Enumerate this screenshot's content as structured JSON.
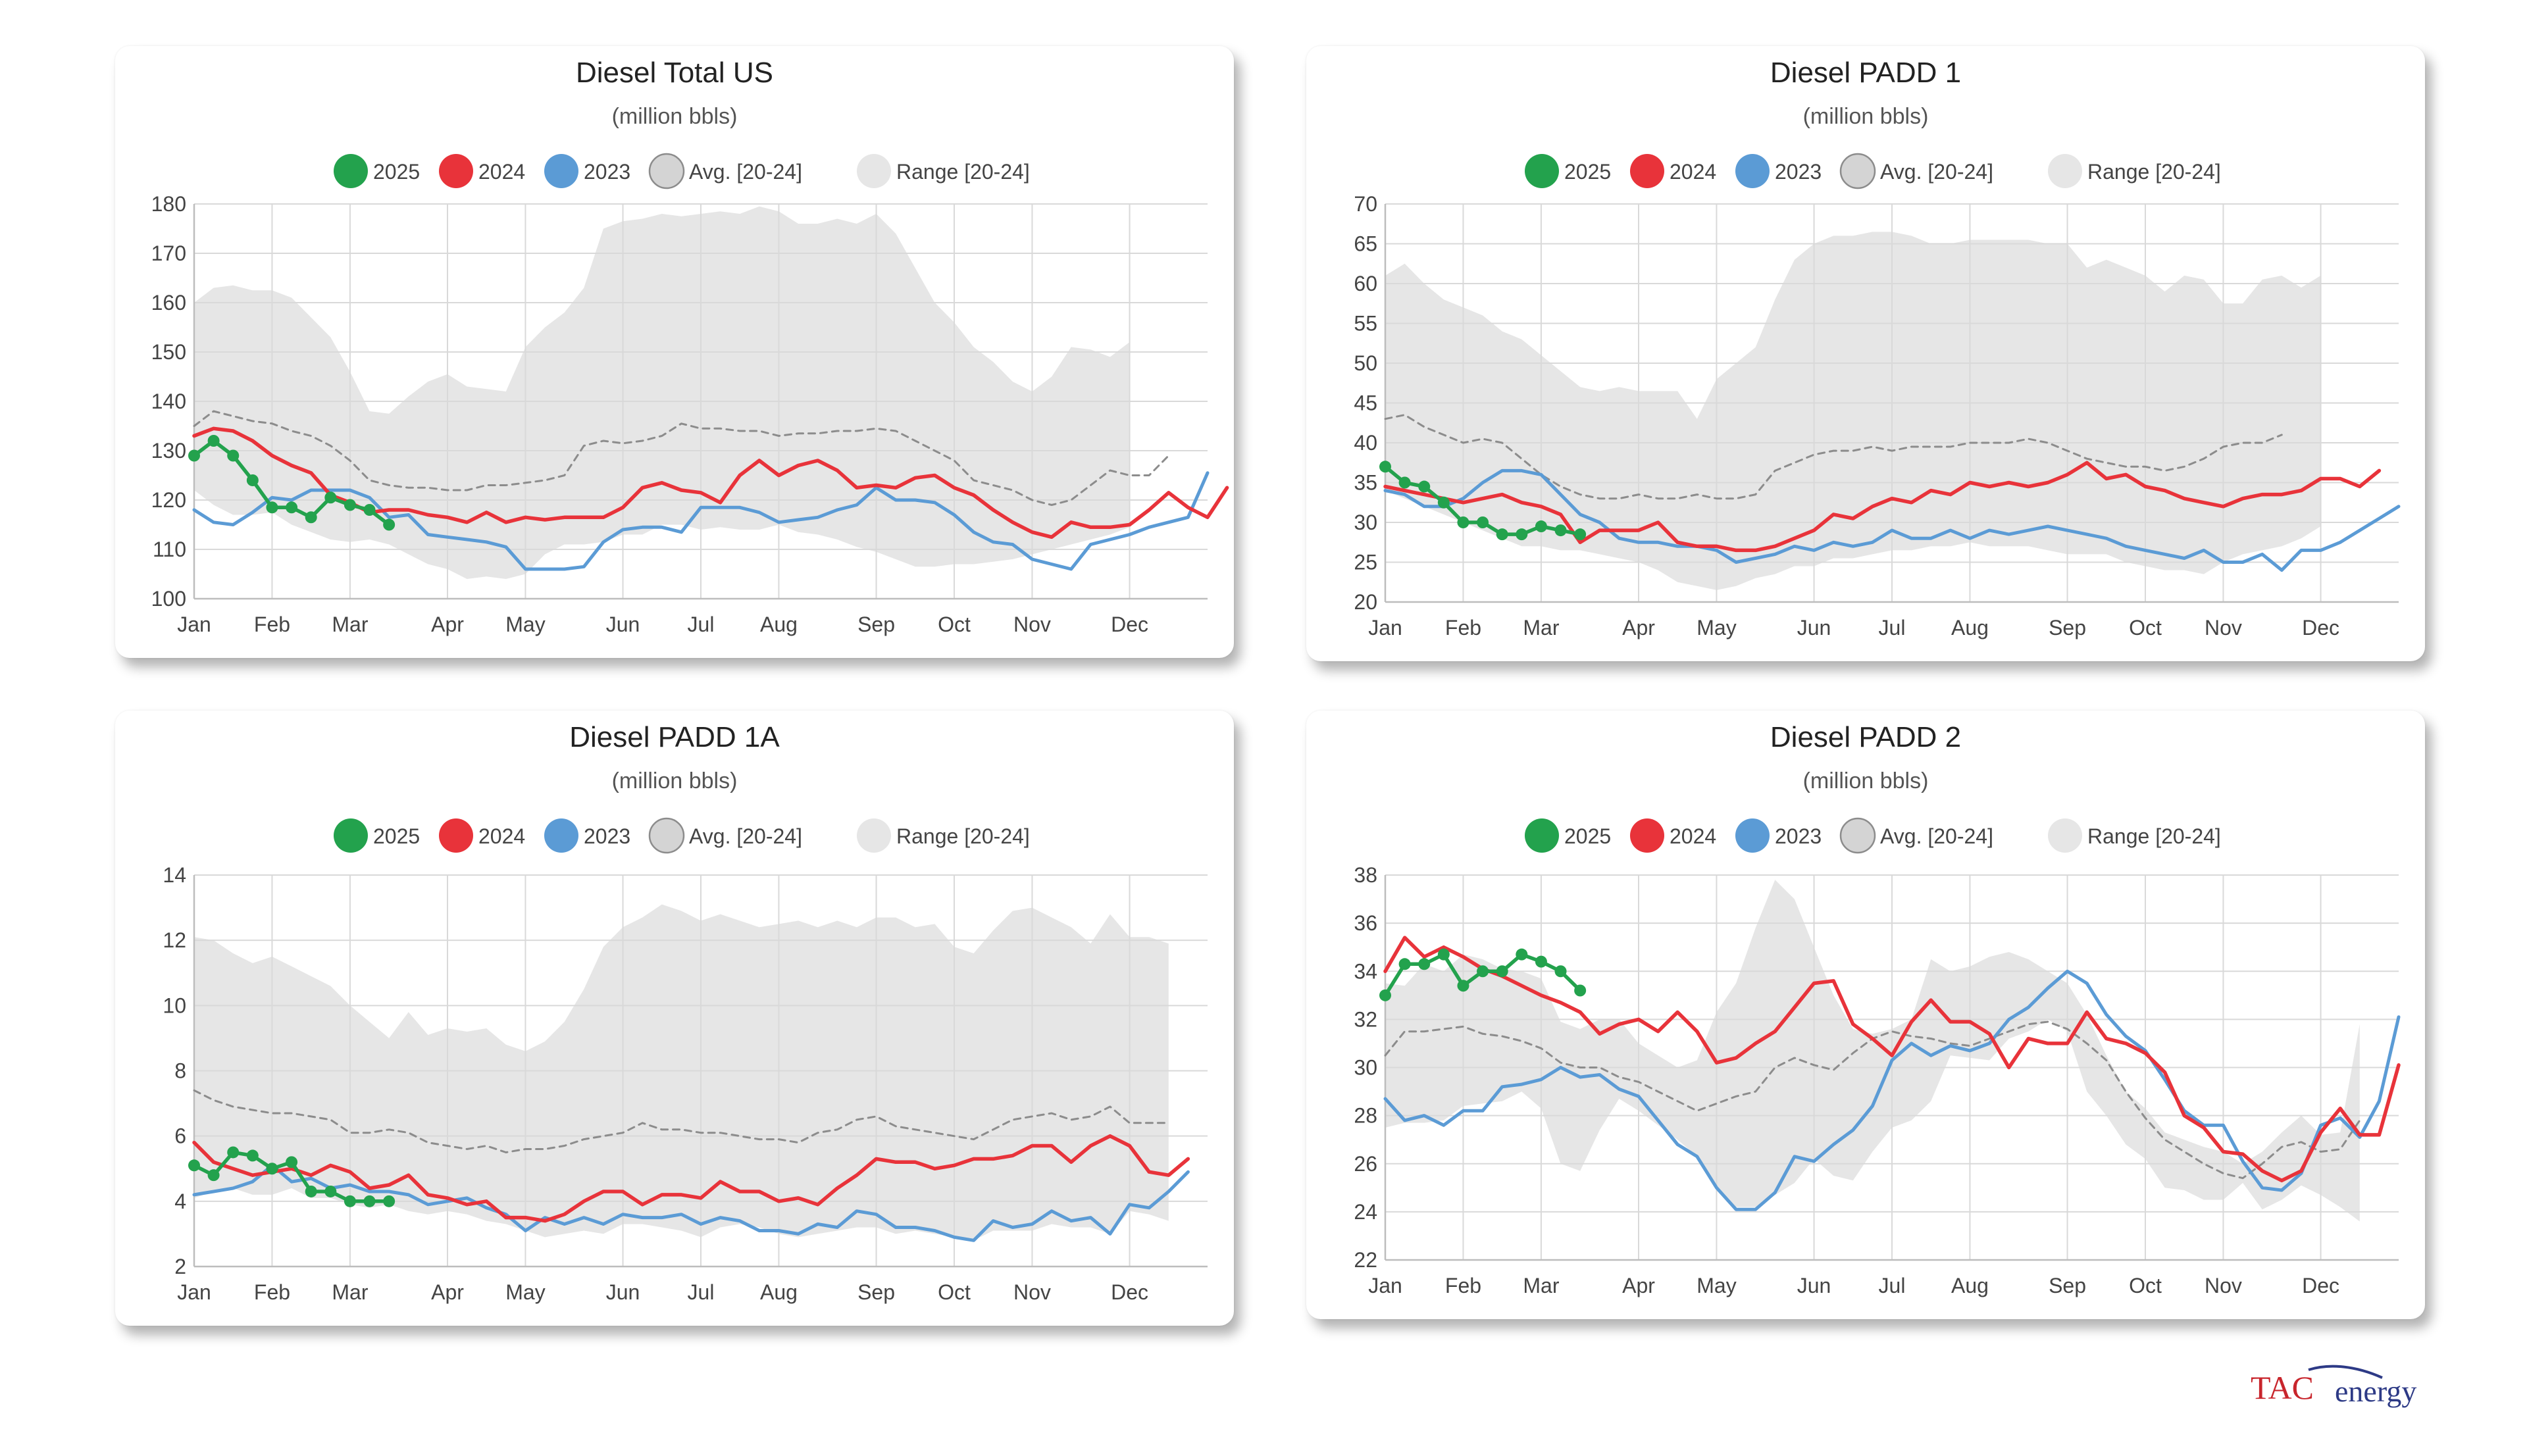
{
  "legend": {
    "s2025": "2025",
    "s2024": "2024",
    "s2023": "2023",
    "avg": "Avg. [20-24]",
    "range": "Range [20-24]"
  },
  "colors": {
    "s2025": "#23a24d",
    "s2024": "#e8333a",
    "s2023": "#5b9bd5",
    "avg": "#8c8c8c",
    "range": "#e6e6e6",
    "grid": "#d9d9d9"
  },
  "x_tick_labels": [
    "Jan",
    "Feb",
    "Mar",
    "Apr",
    "May",
    "Jun",
    "Jul",
    "Aug",
    "Sep",
    "Oct",
    "Nov",
    "Dec"
  ],
  "x_tick_weeks": [
    0,
    4,
    8,
    13,
    17,
    22,
    26,
    30,
    35,
    39,
    43,
    48
  ],
  "logo": {
    "text_brand": "TAC",
    "text_sub": "energy"
  },
  "chart_data": [
    {
      "type": "line",
      "title": "Diesel Total US",
      "subtitle": "(million bbls)",
      "yticks": [
        100,
        110,
        120,
        130,
        140,
        150,
        160,
        170,
        180
      ],
      "ylim": [
        100,
        180
      ],
      "series": {
        "s2025": [
          129,
          132,
          129,
          124,
          118.5,
          118.5,
          116.5,
          120.5,
          119,
          118,
          115
        ],
        "s2024": [
          133,
          134.5,
          134,
          132,
          129,
          127,
          125.5,
          121,
          119.5,
          117.5,
          118,
          118,
          117,
          116.5,
          115.5,
          117.5,
          115.5,
          116.5,
          116,
          116.5,
          116.5,
          116.5,
          118.5,
          122.5,
          123.5,
          122,
          121.5,
          119.5,
          125,
          128,
          125,
          127,
          128,
          126,
          122.5,
          123,
          122.5,
          124.5,
          125,
          122.5,
          121,
          118,
          115.5,
          113.5,
          112.5,
          115.5,
          114.5,
          114.5,
          115,
          118,
          121.5,
          118.5,
          116.5,
          122.5
        ],
        "s2023": [
          118,
          115.5,
          115,
          117.5,
          120.5,
          120,
          122,
          122,
          122,
          120.5,
          116.5,
          117,
          113,
          112.5,
          112,
          111.5,
          110.5,
          106,
          106,
          106,
          106.5,
          111.5,
          114,
          114.5,
          114.5,
          113.5,
          118.5,
          118.5,
          118.5,
          117.5,
          115.5,
          116,
          116.5,
          118,
          119,
          122.5,
          120,
          120,
          119.5,
          117,
          113.5,
          111.5,
          111,
          108,
          107,
          106,
          111,
          112,
          113,
          114.5,
          115.5,
          116.5,
          125.5
        ],
        "avg": [
          135,
          138,
          137,
          136,
          135.5,
          134,
          133,
          131,
          128,
          124,
          123,
          122.5,
          122.5,
          122,
          122,
          123,
          123,
          123.5,
          124,
          125,
          131,
          132,
          131.5,
          132,
          133,
          135.5,
          134.5,
          134.5,
          134,
          134,
          133,
          133.5,
          133.5,
          134,
          134,
          134.5,
          134,
          132,
          130,
          128,
          124,
          123,
          122,
          120,
          119,
          120,
          123,
          126,
          125,
          125,
          129
        ],
        "range_hi": [
          160,
          163,
          163.5,
          162.5,
          162.5,
          161,
          157,
          153,
          146,
          138,
          137.5,
          141,
          144,
          145.5,
          143,
          142.5,
          142,
          151,
          155,
          158,
          163,
          175,
          176.5,
          177,
          178,
          177.5,
          178,
          178.5,
          178,
          179.5,
          178.5,
          176,
          176,
          177,
          176,
          178,
          174,
          167,
          160,
          156,
          151,
          148,
          144,
          142,
          145,
          151,
          150.5,
          149,
          152
        ],
        "range_lo": [
          122,
          119,
          117,
          117,
          117.5,
          115,
          113.5,
          112,
          111.5,
          112,
          111,
          109,
          107,
          106,
          104,
          104.5,
          104,
          105,
          109,
          111,
          111,
          111.5,
          113,
          113,
          115,
          115,
          114,
          114.5,
          114,
          114,
          115,
          113.5,
          113,
          112,
          110.5,
          109.5,
          108,
          106.5,
          106.5,
          107,
          107,
          107.5,
          108,
          109,
          110,
          111,
          112,
          113,
          114.5
        ]
      }
    },
    {
      "type": "line",
      "title": "Diesel PADD 1",
      "subtitle": "(million bbls)",
      "yticks": [
        20,
        25,
        30,
        35,
        40,
        45,
        50,
        55,
        60,
        65,
        70
      ],
      "ylim": [
        20,
        70
      ],
      "series": {
        "s2025": [
          37,
          35,
          34.5,
          32.5,
          30,
          30,
          28.5,
          28.5,
          29.5,
          29,
          28.5
        ],
        "s2024": [
          34.5,
          34,
          33.5,
          33,
          32.5,
          33,
          33.5,
          32.5,
          32,
          31,
          27.5,
          29,
          29,
          29,
          30,
          27.5,
          27,
          27,
          26.5,
          26.5,
          27,
          28,
          29,
          31,
          30.5,
          32,
          33,
          32.5,
          34,
          33.5,
          35,
          34.5,
          35,
          34.5,
          35,
          36,
          37.5,
          35.5,
          36,
          34.5,
          34,
          33,
          32.5,
          32,
          33,
          33.5,
          33.5,
          34,
          35.5,
          35.5,
          34.5,
          36.5
        ],
        "s2023": [
          34,
          33.5,
          32,
          32,
          33,
          35,
          36.5,
          36.5,
          36,
          33.5,
          31,
          30,
          28,
          27.5,
          27.5,
          27,
          27,
          26.5,
          25,
          25.5,
          26,
          27,
          26.5,
          27.5,
          27,
          27.5,
          29,
          28,
          28,
          29,
          28,
          29,
          28.5,
          29,
          29.5,
          29,
          28.5,
          28,
          27,
          26.5,
          26,
          25.5,
          26.5,
          25,
          25,
          26,
          24,
          26.5,
          26.5,
          27.5,
          29,
          30.5,
          32
        ],
        "avg": [
          43,
          43.5,
          42,
          41,
          40,
          40.5,
          40,
          38,
          36,
          34.5,
          33.5,
          33,
          33,
          33.5,
          33,
          33,
          33.5,
          33,
          33,
          33.5,
          36.5,
          37.5,
          38.5,
          39,
          39,
          39.5,
          39,
          39.5,
          39.5,
          39.5,
          40,
          40,
          40,
          40.5,
          40,
          39,
          38,
          37.5,
          37,
          37,
          36.5,
          37,
          38,
          39.5,
          40,
          40,
          41
        ],
        "range_hi": [
          61,
          62.5,
          60,
          58,
          57,
          56,
          54,
          53,
          51,
          49,
          47,
          46.5,
          47,
          46.5,
          46.5,
          46.5,
          43,
          48,
          50,
          52,
          58,
          63,
          65,
          66,
          66,
          66.5,
          66.5,
          66,
          65,
          65,
          65.5,
          65.5,
          65.5,
          65.5,
          65,
          65,
          62,
          63,
          62,
          61,
          59,
          61,
          60.5,
          57.5,
          57.5,
          60.5,
          61,
          59.5,
          61
        ],
        "range_lo": [
          34,
          33,
          32,
          31,
          30,
          29,
          28,
          27,
          27,
          26.5,
          26.5,
          26,
          25.5,
          25,
          24,
          22.5,
          22,
          21.5,
          22,
          23,
          23.5,
          24.5,
          24.5,
          25.5,
          25.5,
          26,
          26.5,
          26.5,
          27,
          27,
          27.5,
          27,
          27,
          27,
          26.5,
          26,
          26,
          26,
          25,
          24.5,
          24,
          24,
          23.5,
          25,
          26,
          26.5,
          27,
          28,
          29.5
        ]
      }
    },
    {
      "type": "line",
      "title": "Diesel PADD 1A",
      "subtitle": "(million bbls)",
      "yticks": [
        2,
        4,
        6,
        8,
        10,
        12,
        14
      ],
      "ylim": [
        2,
        14
      ],
      "series": {
        "s2025": [
          5.1,
          4.8,
          5.5,
          5.4,
          5,
          5.2,
          4.3,
          4.3,
          4,
          4,
          4
        ],
        "s2024": [
          5.8,
          5.2,
          5,
          4.8,
          4.9,
          5,
          4.8,
          5.1,
          4.9,
          4.4,
          4.5,
          4.8,
          4.2,
          4.1,
          3.9,
          4,
          3.5,
          3.5,
          3.4,
          3.6,
          4,
          4.3,
          4.3,
          3.9,
          4.2,
          4.2,
          4.1,
          4.6,
          4.3,
          4.3,
          4,
          4.1,
          3.9,
          4.4,
          4.8,
          5.3,
          5.2,
          5.2,
          5,
          5.1,
          5.3,
          5.3,
          5.4,
          5.7,
          5.7,
          5.2,
          5.7,
          6,
          5.7,
          4.9,
          4.8,
          5.3
        ],
        "s2023": [
          4.2,
          4.3,
          4.4,
          4.6,
          5.1,
          4.6,
          4.7,
          4.4,
          4.5,
          4.3,
          4.3,
          4.2,
          3.9,
          4,
          4.1,
          3.8,
          3.6,
          3.1,
          3.5,
          3.3,
          3.5,
          3.3,
          3.6,
          3.5,
          3.5,
          3.6,
          3.3,
          3.5,
          3.4,
          3.1,
          3.1,
          3,
          3.3,
          3.2,
          3.7,
          3.6,
          3.2,
          3.2,
          3.1,
          2.9,
          2.8,
          3.4,
          3.2,
          3.3,
          3.7,
          3.4,
          3.5,
          3,
          3.9,
          3.8,
          4.3,
          4.9
        ],
        "avg": [
          7.4,
          7.1,
          6.9,
          6.8,
          6.7,
          6.7,
          6.6,
          6.5,
          6.1,
          6.1,
          6.2,
          6.1,
          5.8,
          5.7,
          5.6,
          5.7,
          5.5,
          5.6,
          5.6,
          5.7,
          5.9,
          6,
          6.1,
          6.4,
          6.2,
          6.2,
          6.1,
          6.1,
          6,
          5.9,
          5.9,
          5.8,
          6.1,
          6.2,
          6.5,
          6.6,
          6.3,
          6.2,
          6.1,
          6,
          5.9,
          6.2,
          6.5,
          6.6,
          6.7,
          6.5,
          6.6,
          6.9,
          6.4,
          6.4,
          6.4
        ],
        "range_hi": [
          12.1,
          12,
          11.6,
          11.3,
          11.5,
          11.2,
          10.9,
          10.6,
          10,
          9.5,
          9,
          9.8,
          9.1,
          9.3,
          9.2,
          9.3,
          8.8,
          8.6,
          8.9,
          9.5,
          10.5,
          11.8,
          12.4,
          12.7,
          13.1,
          12.9,
          12.6,
          12.8,
          12.6,
          12.4,
          12.5,
          12.6,
          12.4,
          12.6,
          12.4,
          12.7,
          12.7,
          12.4,
          12.5,
          11.8,
          11.6,
          12.3,
          12.9,
          13,
          12.7,
          12.4,
          11.9,
          12.8,
          12.1,
          12.1,
          11.9
        ],
        "range_lo": [
          4.1,
          4.3,
          4.4,
          4.2,
          4.2,
          4.4,
          4.1,
          4.1,
          3.9,
          3.8,
          3.9,
          3.7,
          3.6,
          3.7,
          3.6,
          3.4,
          3.3,
          3.1,
          2.9,
          3,
          3.1,
          3,
          3.3,
          3.3,
          3.2,
          3.1,
          2.9,
          3.2,
          3.3,
          3.2,
          3,
          2.9,
          3,
          3.1,
          3.2,
          3.2,
          3,
          3.1,
          3,
          2.9,
          2.8,
          3.1,
          3.1,
          3.1,
          3.3,
          3.2,
          3.2,
          3,
          3.7,
          3.6,
          3.4
        ]
      }
    },
    {
      "type": "line",
      "title": "Diesel PADD 2",
      "subtitle": "(million bbls)",
      "yticks": [
        22,
        24,
        26,
        28,
        30,
        32,
        34,
        36,
        38
      ],
      "ylim": [
        22,
        38
      ],
      "series": {
        "s2025": [
          33,
          34.3,
          34.3,
          34.7,
          33.4,
          34,
          34,
          34.7,
          34.4,
          34,
          33.2
        ],
        "s2024": [
          34,
          35.4,
          34.6,
          35,
          34.6,
          34.1,
          33.8,
          33.4,
          33,
          32.7,
          32.3,
          31.4,
          31.8,
          32,
          31.5,
          32.3,
          31.5,
          30.2,
          30.4,
          31,
          31.5,
          32.5,
          33.5,
          33.6,
          31.8,
          31.2,
          30.5,
          31.9,
          32.8,
          31.9,
          31.9,
          31.4,
          30,
          31.2,
          31,
          31,
          32.3,
          31.2,
          31,
          30.6,
          29.8,
          28,
          27.5,
          26.5,
          26.4,
          25.7,
          25.3,
          25.7,
          27.3,
          28.3,
          27.2,
          27.2,
          30.1
        ],
        "s2023": [
          28.7,
          27.8,
          28,
          27.6,
          28.2,
          28.2,
          29.2,
          29.3,
          29.5,
          30,
          29.6,
          29.7,
          29.1,
          28.8,
          27.8,
          26.8,
          26.3,
          25,
          24.1,
          24.1,
          24.8,
          26.3,
          26.1,
          26.8,
          27.4,
          28.4,
          30.3,
          31,
          30.5,
          30.9,
          30.7,
          31,
          32,
          32.5,
          33.3,
          34,
          33.5,
          32.2,
          31.3,
          30.7,
          29.5,
          28.2,
          27.6,
          27.6,
          26.1,
          25,
          24.9,
          25.6,
          27.6,
          27.9,
          27.1,
          28.6,
          32.1
        ],
        "avg": [
          30.5,
          31.5,
          31.5,
          31.6,
          31.7,
          31.4,
          31.3,
          31.1,
          30.8,
          30.2,
          30,
          30,
          29.6,
          29.4,
          29,
          28.6,
          28.2,
          28.5,
          28.8,
          29,
          30,
          30.4,
          30.1,
          29.9,
          30.6,
          31.2,
          31.5,
          31.3,
          31.2,
          31,
          30.9,
          31.2,
          31.5,
          31.8,
          31.9,
          31.6,
          31,
          30.3,
          29,
          27.9,
          27,
          26.5,
          26,
          25.6,
          25.4,
          26,
          26.7,
          26.9,
          26.5,
          26.6,
          27.8
        ],
        "range_hi": [
          33.5,
          33.4,
          34.3,
          34,
          34.7,
          34.5,
          34.1,
          34,
          33.7,
          31.9,
          31.6,
          32,
          32,
          31,
          30.5,
          30,
          30.3,
          32.3,
          33.5,
          35.8,
          37.8,
          37,
          35,
          33,
          31.6,
          31.4,
          31.6,
          32,
          34.5,
          34,
          34.2,
          34.6,
          34.8,
          34.5,
          34,
          33.5,
          32.2,
          30.5,
          29,
          28.3,
          27.3,
          27,
          26.7,
          26.5,
          26,
          26.5,
          27.3,
          28,
          27.2,
          27.3,
          31.8
        ],
        "range_lo": [
          27.5,
          27.7,
          27.7,
          27.8,
          28.4,
          28.5,
          28.6,
          29,
          28.3,
          26,
          25.7,
          27.4,
          28.7,
          28.2,
          27.6,
          27,
          26.3,
          25,
          24.2,
          24.2,
          24.7,
          25.2,
          26.2,
          25.5,
          25.3,
          26.5,
          27.5,
          27.8,
          28.6,
          30.5,
          30.4,
          30.3,
          31.2,
          31.5,
          32,
          31.5,
          29,
          28,
          26.8,
          26.2,
          25,
          24.9,
          24.5,
          24.5,
          25.2,
          24.1,
          24.5,
          25.1,
          24.7,
          24.2,
          23.6
        ]
      }
    }
  ]
}
